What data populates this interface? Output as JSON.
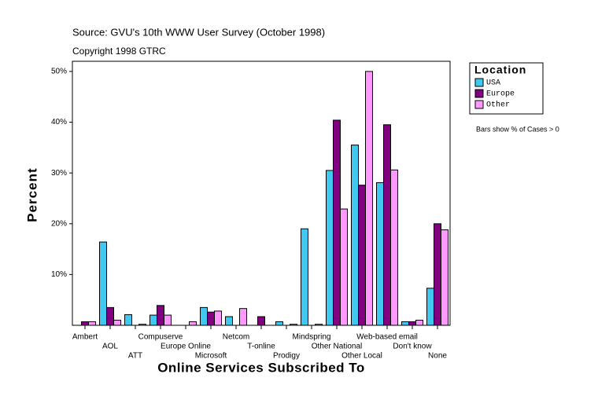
{
  "chart_data": {
    "type": "bar",
    "subtitle": "Source: GVU's 10th WWW User Survey (October 1998)",
    "copyright": "Copyright 1998 GTRC",
    "x_label": "Online Services Subscribed To",
    "y_label": "Percent",
    "note": "Bars show % of Cases > 0",
    "legend_title": "Location",
    "categories": [
      "Ambert",
      "AOL",
      "ATT",
      "Compuserve",
      "Europe Online",
      "Microsoft",
      "Netcom",
      "T-online",
      "Prodigy",
      "Mindspring",
      "Other National",
      "Other Local",
      "Web-based email",
      "Don't know",
      "None"
    ],
    "series": [
      {
        "name": "USA",
        "color": "#40c8f0",
        "values": [
          0,
          16.4,
          2.1,
          2.0,
          0,
          3.5,
          1.7,
          0,
          0.7,
          19.0,
          30.5,
          35.5,
          28.1,
          0.7,
          7.3
        ]
      },
      {
        "name": "Europe",
        "color": "#800080",
        "values": [
          0.7,
          3.5,
          0,
          3.9,
          0,
          2.6,
          0,
          1.7,
          0,
          0,
          40.4,
          27.6,
          39.5,
          0.7,
          20.0
        ]
      },
      {
        "name": "Other",
        "color": "#ff99ff",
        "values": [
          0.7,
          1.0,
          0.2,
          2.0,
          0.7,
          2.8,
          3.3,
          0,
          0.2,
          0.2,
          22.9,
          50.0,
          30.6,
          1.0,
          18.8
        ]
      }
    ],
    "ylim": [
      0,
      52
    ],
    "yticks": [
      {
        "value": 10,
        "label": "10%"
      },
      {
        "value": 20,
        "label": "20%"
      },
      {
        "value": 30,
        "label": "30%"
      },
      {
        "value": 40,
        "label": "40%"
      },
      {
        "value": 50,
        "label": "50%"
      }
    ]
  }
}
